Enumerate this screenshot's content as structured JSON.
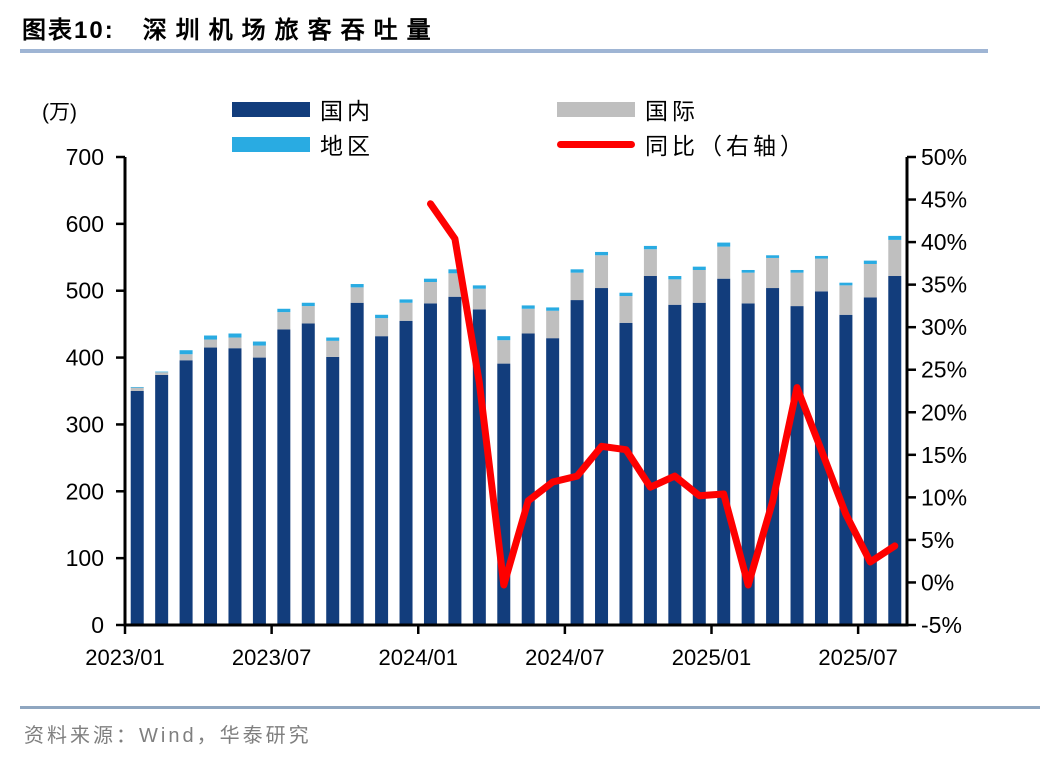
{
  "header": {
    "figure_label": "图表10:",
    "title": "深圳机场旅客吞吐量"
  },
  "legend": {
    "position": "top",
    "items": [
      {
        "label": "国内",
        "shape": "box",
        "color": "#123D7C"
      },
      {
        "label": "国际",
        "shape": "box",
        "color": "#BFBFBF"
      },
      {
        "label": "地区",
        "shape": "box",
        "color": "#29ABE2"
      },
      {
        "label": "同比（右轴）",
        "shape": "line",
        "color": "#FE0000"
      }
    ]
  },
  "footer": {
    "source": "资料来源：Wind，华泰研究"
  },
  "chart_data": {
    "type": "bar",
    "subtype": "stacked-bars-with-yoy-line",
    "title": "深圳机场旅客吞吐量",
    "unit_label": "(万)",
    "grid": false,
    "legend_position": "top",
    "categories": [
      "2023/01",
      "2023/02",
      "2023/03",
      "2023/04",
      "2023/05",
      "2023/06",
      "2023/07",
      "2023/08",
      "2023/09",
      "2023/10",
      "2023/11",
      "2023/12",
      "2024/01",
      "2024/02",
      "2024/03",
      "2024/04",
      "2024/05",
      "2024/06",
      "2024/07",
      "2024/08",
      "2024/09",
      "2024/10",
      "2024/11",
      "2024/12",
      "2025/01",
      "2025/02",
      "2025/03",
      "2025/04",
      "2025/05",
      "2025/06",
      "2025/07",
      "2025/08"
    ],
    "series": [
      {
        "name": "国内",
        "type": "bar",
        "axis": "left",
        "color": "#123D7C",
        "values": [
          350,
          374,
          396,
          415,
          414,
          400,
          442,
          451,
          401,
          482,
          432,
          455,
          481,
          491,
          472,
          391,
          436,
          429,
          486,
          504,
          452,
          522,
          479,
          482,
          518,
          481,
          504,
          477,
          499,
          464,
          490,
          522
        ]
      },
      {
        "name": "国际",
        "type": "bar",
        "axis": "left",
        "color": "#BFBFBF",
        "values": [
          5,
          4,
          9,
          12,
          16,
          18,
          26,
          26,
          24,
          23,
          27,
          27,
          32,
          35,
          31,
          35,
          37,
          41,
          41,
          49,
          40,
          40,
          38,
          49,
          48,
          46,
          45,
          50,
          49,
          44,
          50,
          54
        ]
      },
      {
        "name": "地区",
        "type": "bar",
        "axis": "left",
        "color": "#29ABE2",
        "values": [
          1,
          1,
          6,
          6,
          6,
          6,
          5,
          5,
          5,
          5,
          5,
          5,
          5,
          6,
          5,
          6,
          5,
          5,
          5,
          5,
          5,
          5,
          5,
          5,
          6,
          4,
          4,
          4,
          4,
          4,
          5,
          6
        ]
      },
      {
        "name": "同比（右轴）",
        "type": "line",
        "axis": "right",
        "color": "#FE0000",
        "unit": "%",
        "start_index": 12,
        "values": [
          44.5,
          40.4,
          23.5,
          -0.3,
          9.6,
          11.8,
          12.5,
          16.0,
          15.6,
          11.2,
          12.5,
          10.2,
          10.4,
          -0.3,
          9.5,
          22.9,
          15.5,
          8.0,
          2.4,
          4.3
        ]
      }
    ],
    "left_axis": {
      "unit": "(万)",
      "min": 0,
      "max": 700,
      "step": 100
    },
    "right_axis": {
      "min": -5,
      "max": 50,
      "step": 5,
      "suffix": "%"
    },
    "x_axis": {
      "tick_labels": [
        "2023/01",
        "2023/07",
        "2024/01",
        "2024/07",
        "2025/01",
        "2025/07"
      ],
      "tick_month_indices": [
        0,
        6,
        12,
        18,
        24,
        30
      ]
    }
  }
}
